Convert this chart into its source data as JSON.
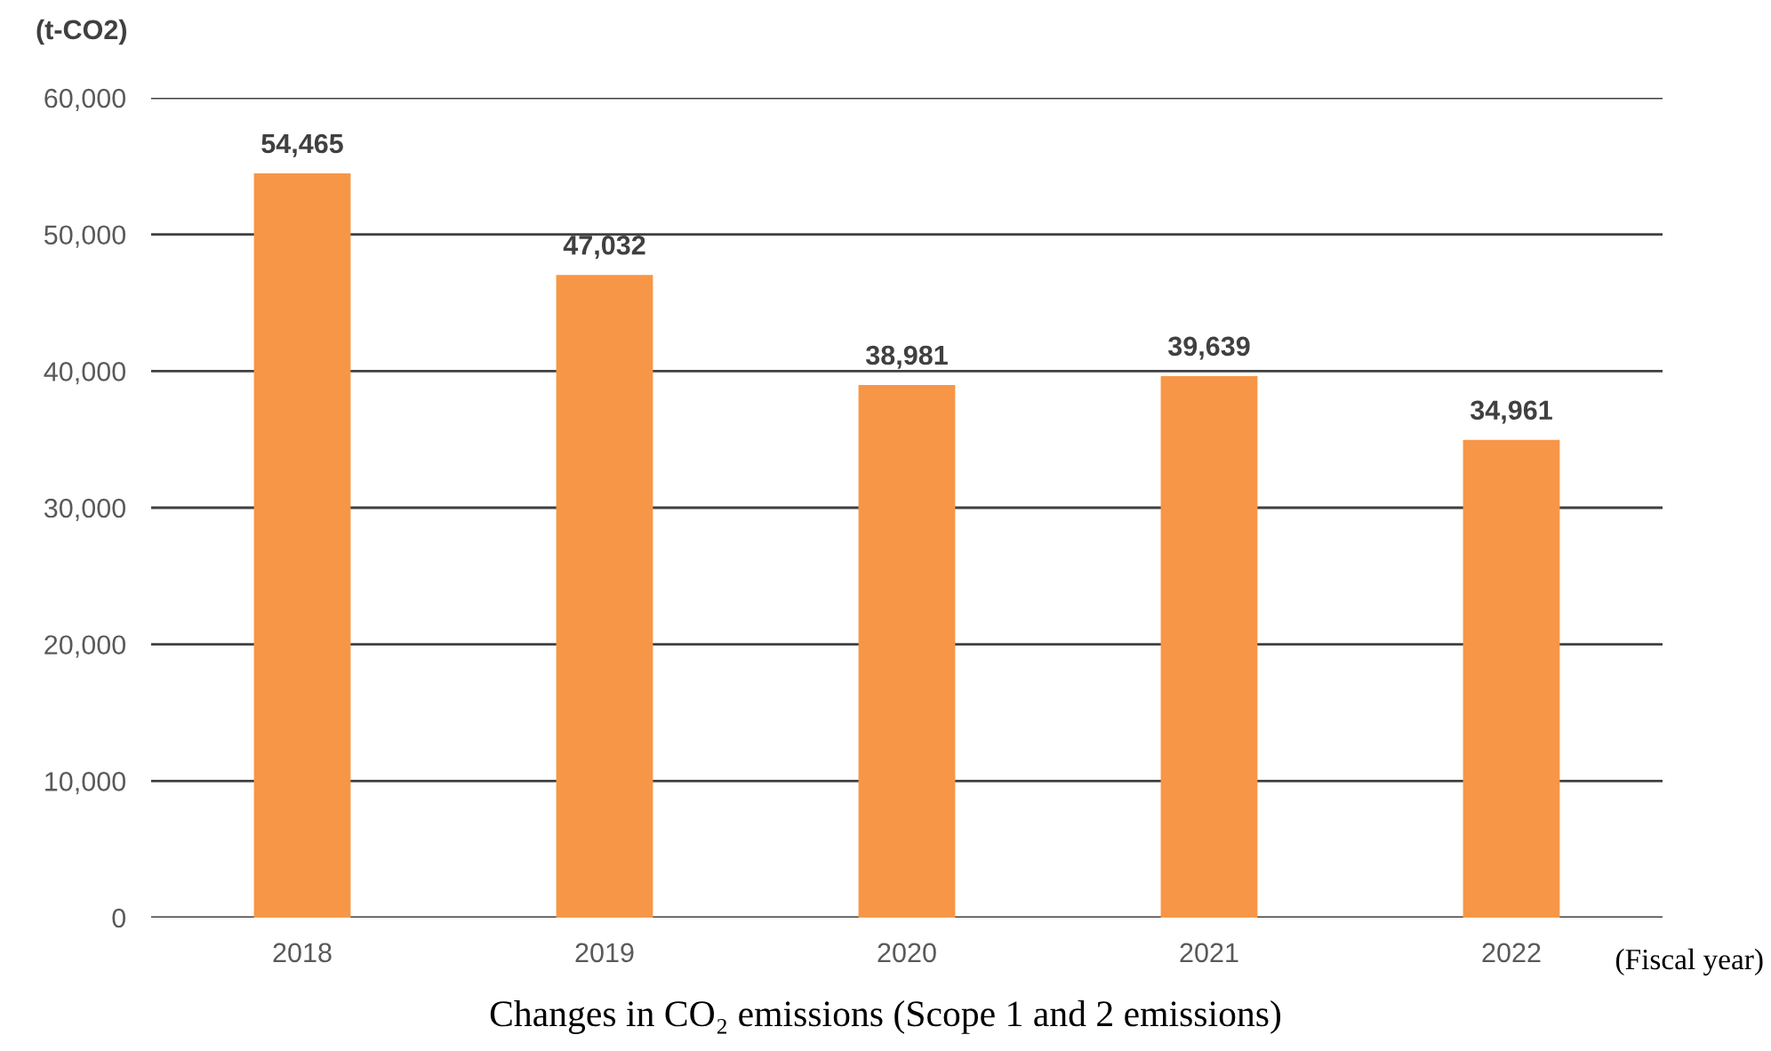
{
  "chart_data": {
    "type": "bar",
    "title": "Changes in CO₂ emissions (Scope 1 and 2 emissions)",
    "ylabel": "(t-CO2)",
    "xlabel": "(Fiscal year)",
    "categories": [
      "2018",
      "2019",
      "2020",
      "2021",
      "2022"
    ],
    "values": [
      54465,
      47032,
      38981,
      39639,
      34961
    ],
    "color": "#f79646",
    "value_labels": [
      "54,465",
      "47,032",
      "38,981",
      "39,639",
      "34,961"
    ],
    "ylim": [
      0,
      60000
    ],
    "yticks": [
      {
        "value": 0,
        "label": "0"
      },
      {
        "value": 10000,
        "label": "10,000"
      },
      {
        "value": 20000,
        "label": "20,000"
      },
      {
        "value": 30000,
        "label": "30,000"
      },
      {
        "value": 40000,
        "label": "40,000"
      },
      {
        "value": 50000,
        "label": "50,000"
      },
      {
        "value": 60000,
        "label": "60,000"
      }
    ],
    "grid": "y",
    "legend": false
  }
}
